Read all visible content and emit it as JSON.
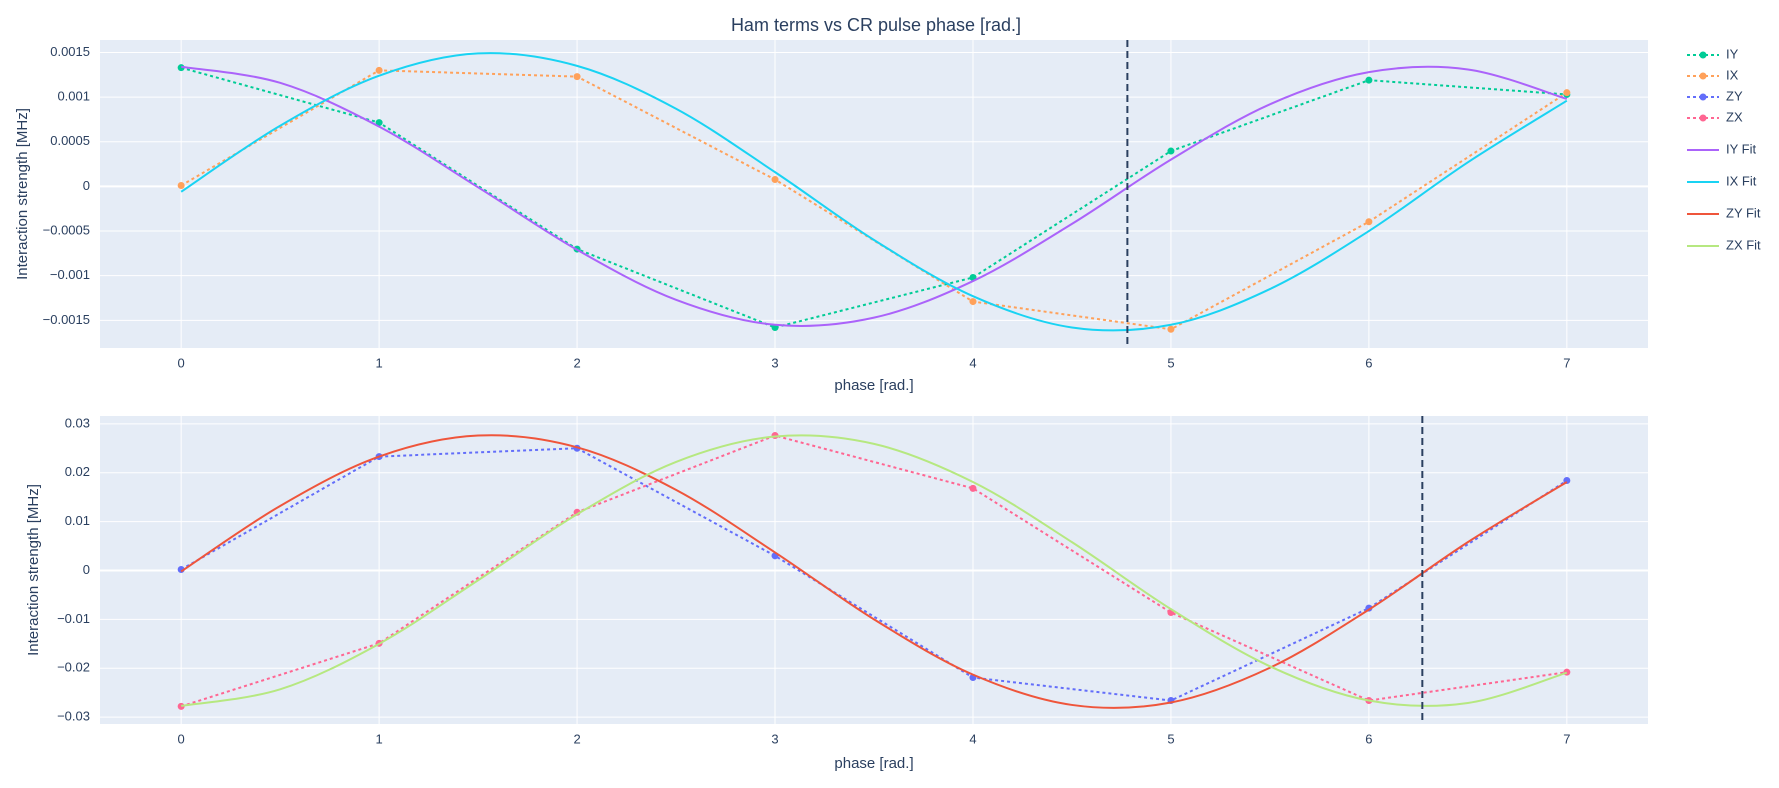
{
  "title": "Ham terms vs CR pulse phase [rad.]",
  "chart_data": [
    {
      "type": "line",
      "xlabel": "phase [rad.]",
      "ylabel": "Interaction strength [MHz]",
      "xlim": [
        -0.41,
        7.41
      ],
      "ylim": [
        -0.00181,
        0.00164
      ],
      "xticks": [
        0,
        1,
        2,
        3,
        4,
        5,
        6,
        7
      ],
      "yticks": [
        {
          "value": -0.0015,
          "label": "−0.0015"
        },
        {
          "value": -0.001,
          "label": "−0.001"
        },
        {
          "value": -0.0005,
          "label": "−0.0005"
        },
        0,
        0.0005,
        0.001,
        0.0015
      ],
      "grid": true,
      "vline": 4.78,
      "series": [
        {
          "name": "IY",
          "color": "#00cc96",
          "mode": "lines+markers",
          "dash": "dot",
          "x": [
            0,
            1,
            2,
            3,
            4,
            5,
            6,
            7
          ],
          "values": [
            0.00133,
            0.000715,
            -0.000702,
            -0.00158,
            -0.00102,
            0.000396,
            0.00119,
            0.00103
          ]
        },
        {
          "name": "IX",
          "color": "#ffa15a",
          "mode": "lines+markers",
          "dash": "dot",
          "x": [
            0,
            1,
            2,
            3,
            4,
            5,
            6,
            7
          ],
          "values": [
            1e-05,
            0.0013,
            0.00123,
            7.7e-05,
            -0.00129,
            -0.0016,
            -0.000396,
            0.00105
          ]
        },
        {
          "name": "IY Fit",
          "color": "#ab63fa",
          "mode": "lines",
          "dash": "solid",
          "x": [
            0,
            0.5,
            1,
            1.5,
            2,
            2.5,
            3,
            3.5,
            4,
            4.5,
            5,
            5.5,
            6,
            6.5,
            7
          ],
          "values": [
            0.00134,
            0.00116,
            0.00067,
            -1e-05,
            -0.00071,
            -0.00127,
            -0.00155,
            -0.00147,
            -0.00106,
            -0.00042,
            0.0003,
            0.00092,
            0.00128,
            0.00131,
            0.00098
          ]
        },
        {
          "name": "IX Fit",
          "color": "#19d3f3",
          "mode": "lines",
          "dash": "solid",
          "x": [
            0,
            0.5,
            1,
            1.5,
            2,
            2.5,
            3,
            3.5,
            4,
            4.5,
            5,
            5.5,
            6,
            6.5,
            7
          ],
          "values": [
            -6e-05,
            0.00068,
            0.00124,
            0.00149,
            0.00135,
            0.00087,
            0.00016,
            -0.0006,
            -0.00123,
            -0.00158,
            -0.00155,
            -0.00115,
            -0.0005,
            0.00027,
            0.00096
          ]
        }
      ]
    },
    {
      "type": "line",
      "xlabel": "phase [rad.]",
      "ylabel": "Interaction strength [MHz]",
      "xlim": [
        -0.41,
        7.41
      ],
      "ylim": [
        -0.0314,
        0.0316
      ],
      "xticks": [
        0,
        1,
        2,
        3,
        4,
        5,
        6,
        7
      ],
      "yticks": [
        {
          "value": -0.03,
          "label": "−0.03"
        },
        {
          "value": -0.02,
          "label": "−0.02"
        },
        {
          "value": -0.01,
          "label": "−0.01"
        },
        0,
        0.01,
        0.02,
        0.03
      ],
      "grid": true,
      "vline": 6.27,
      "series": [
        {
          "name": "ZY",
          "color": "#636efa",
          "mode": "lines+markers",
          "dash": "dot",
          "x": [
            0,
            1,
            2,
            3,
            4,
            5,
            6,
            7
          ],
          "values": [
            0.0002,
            0.0233,
            0.025,
            0.003,
            -0.0219,
            -0.0266,
            -0.0077,
            0.0184
          ]
        },
        {
          "name": "ZX",
          "color": "#ff6692",
          "mode": "lines+markers",
          "dash": "dot",
          "x": [
            0,
            1,
            2,
            3,
            4,
            5,
            6,
            7
          ],
          "values": [
            -0.0278,
            -0.0149,
            0.0119,
            0.0276,
            0.0168,
            -0.0086,
            -0.0266,
            -0.0208
          ]
        },
        {
          "name": "ZY Fit",
          "color": "#ef553b",
          "mode": "lines",
          "dash": "solid",
          "x": [
            0,
            0.5,
            1,
            1.5,
            2,
            2.5,
            3,
            3.5,
            4,
            4.5,
            5,
            5.5,
            6,
            6.5,
            7
          ],
          "values": [
            -0.0002,
            0.0132,
            0.0233,
            0.0276,
            0.0252,
            0.0165,
            0.0037,
            -0.01,
            -0.0213,
            -0.0275,
            -0.027,
            -0.0199,
            -0.008,
            0.0058,
            0.0181
          ]
        },
        {
          "name": "ZX Fit",
          "color": "#b6e880",
          "mode": "lines",
          "dash": "solid",
          "x": [
            0,
            0.5,
            1,
            1.5,
            2,
            2.5,
            3,
            3.5,
            4,
            4.5,
            5,
            5.5,
            6,
            6.5,
            7
          ],
          "values": [
            -0.0277,
            -0.0243,
            -0.015,
            -0.002,
            0.0115,
            0.0222,
            0.0274,
            0.0259,
            0.0181,
            0.0058,
            -0.0079,
            -0.0196,
            -0.0266,
            -0.0271,
            -0.0209
          ]
        }
      ]
    }
  ]
}
